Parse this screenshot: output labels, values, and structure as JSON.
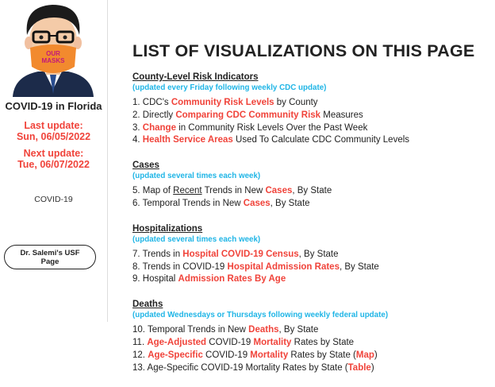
{
  "sidebar": {
    "location": "COVID-19 in Florida",
    "last_update_label": "Last update:",
    "last_update": "Sun, 06/05/2022",
    "next_update_label": "Next update:",
    "next_update": "Tue, 06/07/2022",
    "tag": "COVID-19",
    "button": "Dr. Salemi's USF Page"
  },
  "main": {
    "title": "LIST OF VISUALIZATIONS ON THIS PAGE",
    "sections": [
      {
        "heading": "County-Level Risk Indicators",
        "note": "(updated every Friday following weekly CDC update)",
        "items": [
          [
            {
              "text": "1. CDC's "
            },
            {
              "text": "Community Risk Levels",
              "highlight": true
            },
            {
              "text": " by County"
            }
          ],
          [
            {
              "text": "2. Directly "
            },
            {
              "text": "Comparing CDC Community Risk",
              "highlight": true
            },
            {
              "text": " Measures"
            }
          ],
          [
            {
              "text": "3. "
            },
            {
              "text": "Change",
              "highlight": true
            },
            {
              "text": " in Community Risk Levels Over the Past Week"
            }
          ],
          [
            {
              "text": "4. "
            },
            {
              "text": "Health Service Areas",
              "highlight": true
            },
            {
              "text": " Used To Calculate CDC Community Levels"
            }
          ]
        ]
      },
      {
        "heading": "Cases",
        "note": "(updated several times each week)",
        "items": [
          [
            {
              "text": "5. Map of "
            },
            {
              "text": "Recent",
              "underline": true
            },
            {
              "text": " Trends in New "
            },
            {
              "text": "Cases",
              "highlight": true
            },
            {
              "text": ", By State"
            }
          ],
          [
            {
              "text": "6. Temporal Trends in New "
            },
            {
              "text": "Cases",
              "highlight": true
            },
            {
              "text": ", By State"
            }
          ]
        ]
      },
      {
        "heading": "Hospitalizations",
        "note": "(updated several times each week)",
        "items": [
          [
            {
              "text": "7. Trends in "
            },
            {
              "text": "Hospital COVID-19 Census",
              "highlight": true
            },
            {
              "text": ", By State"
            }
          ],
          [
            {
              "text": "8. Trends in COVID-19 "
            },
            {
              "text": "Hospital Admission Rates",
              "highlight": true
            },
            {
              "text": ", By State"
            }
          ],
          [
            {
              "text": "9. Hospital "
            },
            {
              "text": "Admission Rates By Age",
              "highlight": true
            }
          ]
        ]
      },
      {
        "heading": "Deaths",
        "note": "(updated Wednesdays or Thursdays following weekly federal update)",
        "items": [
          [
            {
              "text": "10. Temporal Trends in New "
            },
            {
              "text": "Deaths",
              "highlight": true
            },
            {
              "text": ", By State"
            }
          ],
          [
            {
              "text": "11. "
            },
            {
              "text": "Age-Adjusted",
              "highlight": true
            },
            {
              "text": " COVID-19 "
            },
            {
              "text": "Mortality",
              "highlight": true
            },
            {
              "text": " Rates by State"
            }
          ],
          [
            {
              "text": "12. "
            },
            {
              "text": "Age-Specific",
              "highlight": true
            },
            {
              "text": " COVID-19 "
            },
            {
              "text": "Mortality",
              "highlight": true
            },
            {
              "text": " Rates by State ("
            },
            {
              "text": "Map",
              "highlight": true
            },
            {
              "text": ")"
            }
          ],
          [
            {
              "text": "13. Age-Specific COVID-19 Mortality Rates by State ("
            },
            {
              "text": "Table",
              "highlight": true
            },
            {
              "text": ")"
            }
          ]
        ]
      }
    ]
  }
}
